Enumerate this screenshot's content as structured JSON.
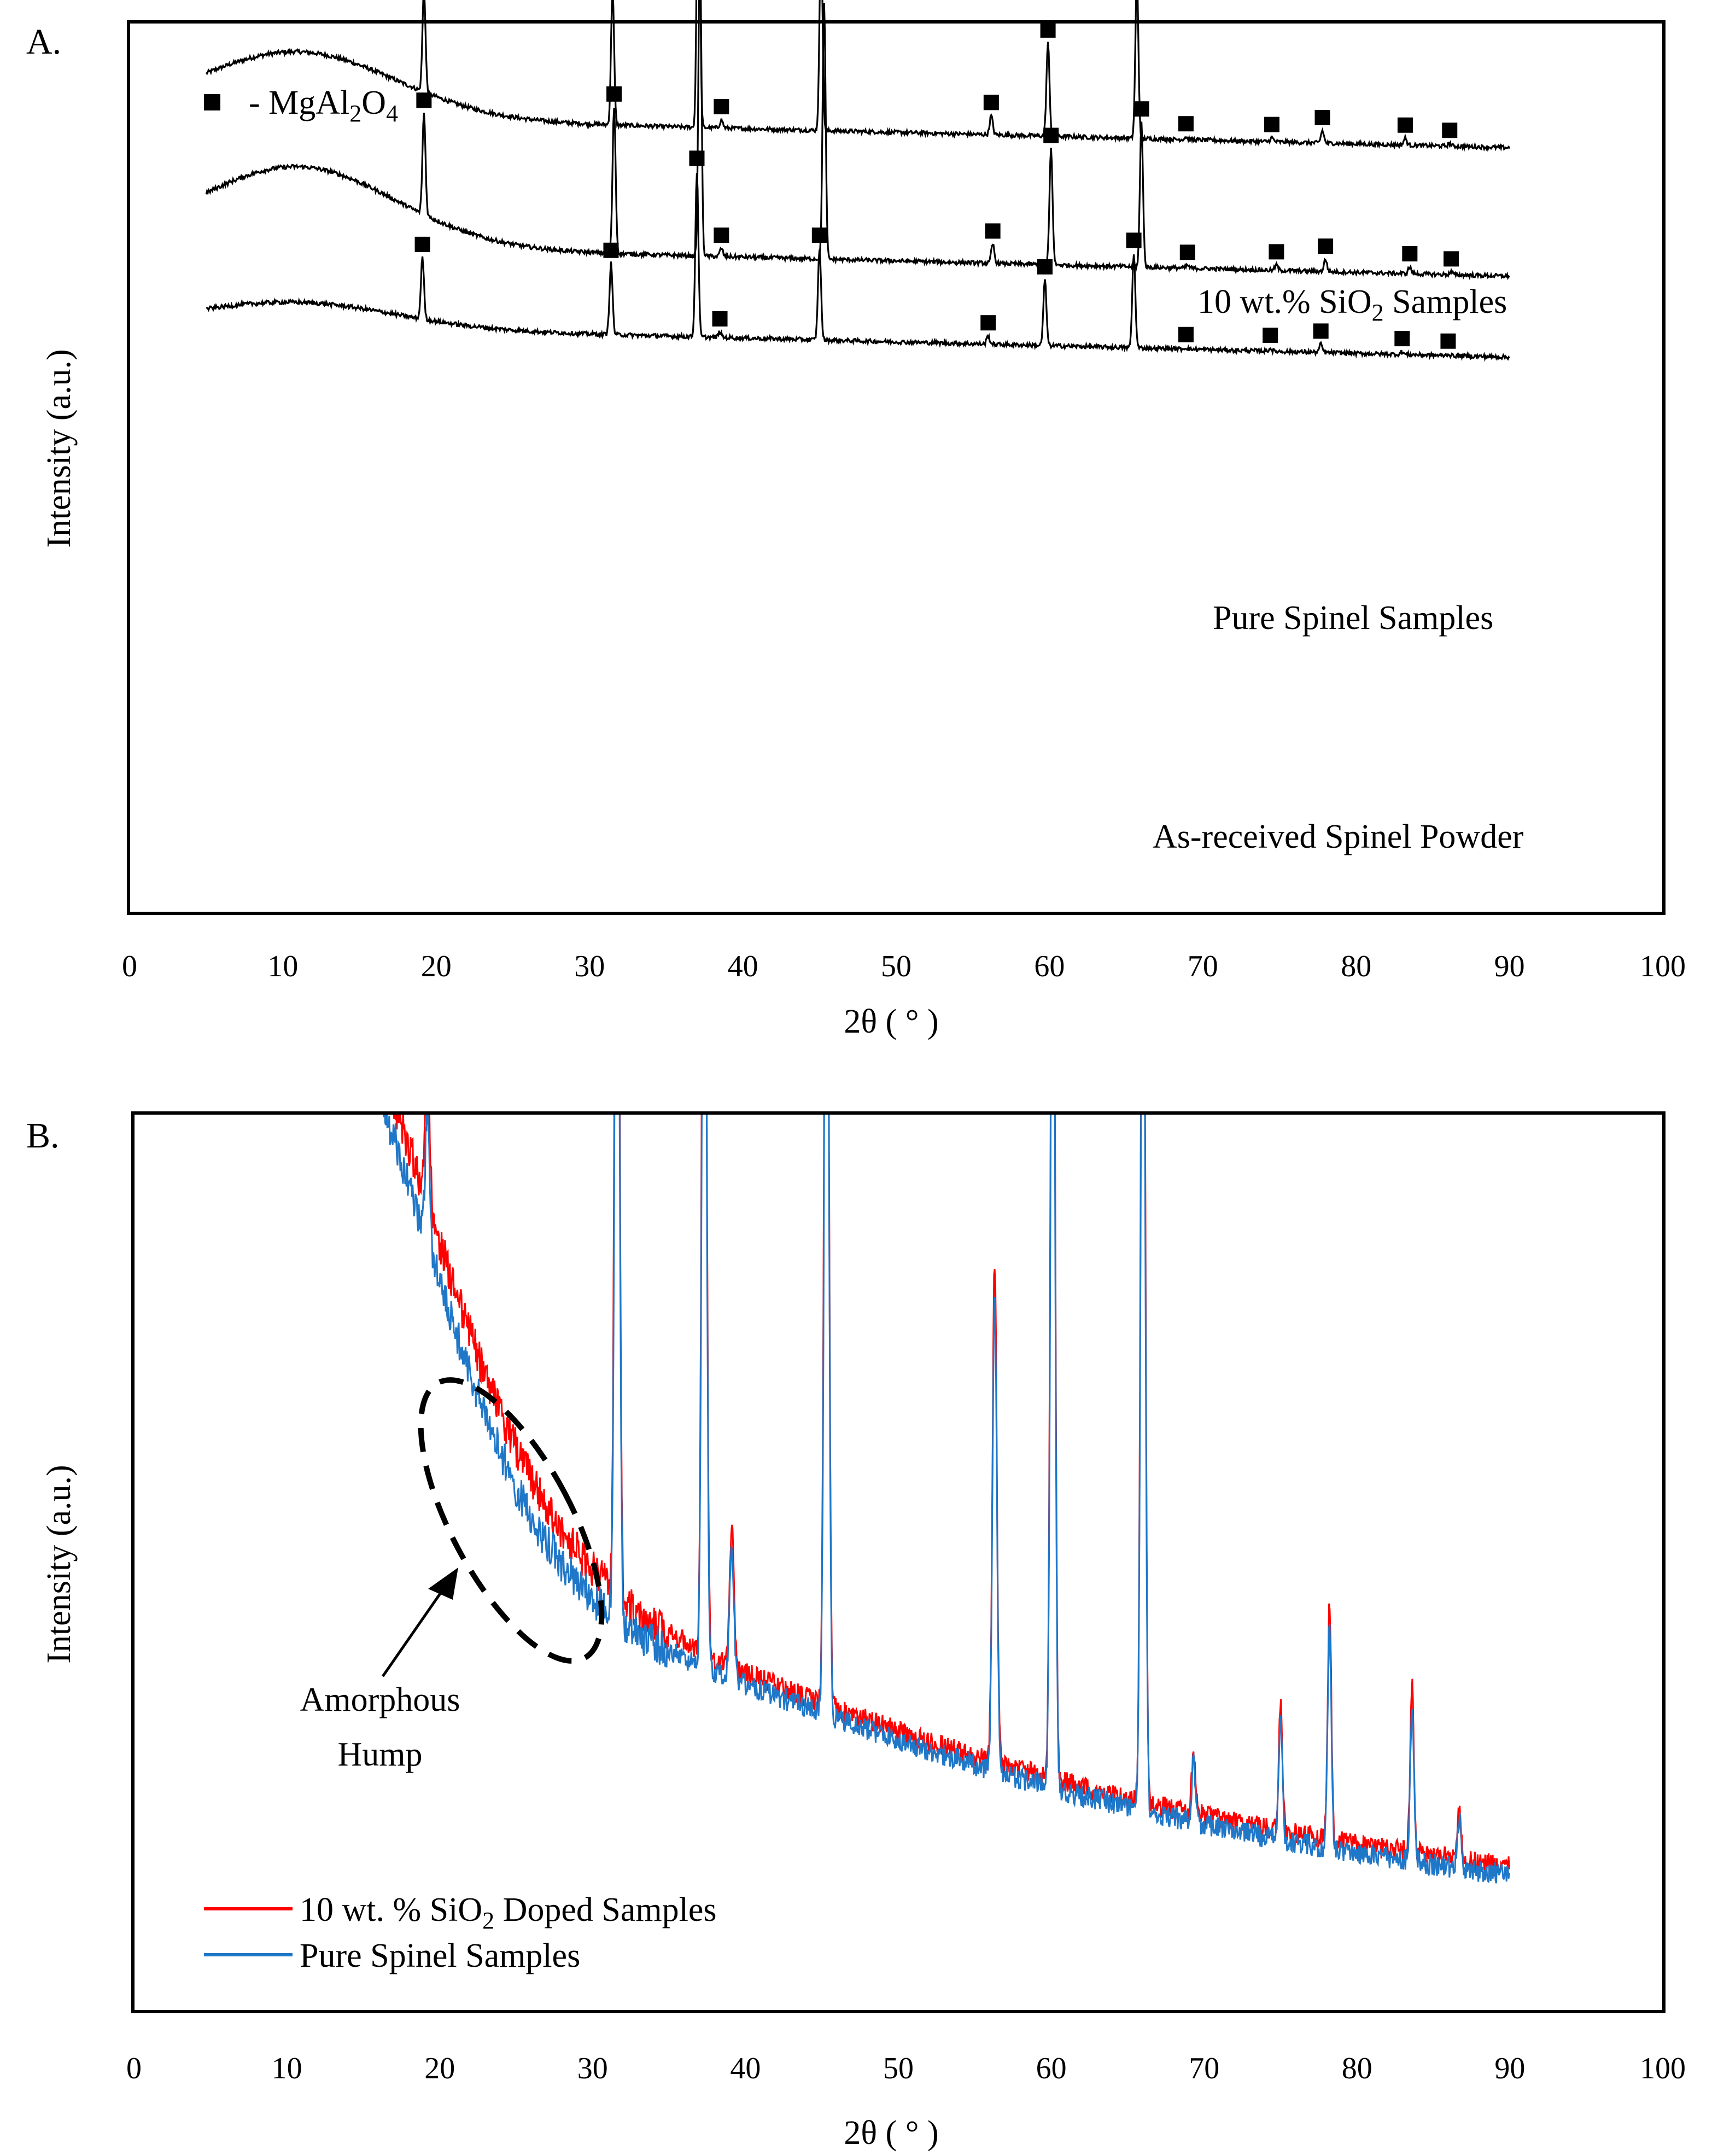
{
  "chart_data": [
    {
      "panel_label": "A.",
      "type": "line",
      "title": "",
      "xlabel": "2θ ( ° )",
      "ylabel": "Intensity (a.u.)",
      "xlim": [
        0,
        100
      ],
      "xticks": [
        0,
        10,
        20,
        30,
        40,
        50,
        60,
        70,
        80,
        90,
        100
      ],
      "marker_legend": {
        "marker": "■",
        "text": "- MgAl",
        "sub1": "2",
        "text2": "O",
        "sub2": "4"
      },
      "series": [
        {
          "name": "10 wt.% SiO2 Samples",
          "label": {
            "text": "10 wt.% SiO",
            "sub": "2",
            "text2": " Samples"
          },
          "color": "#000000",
          "offset": 270,
          "peaks": [
            [
              19.2,
              75
            ],
            [
              31.5,
              99
            ],
            [
              37.1,
              241
            ],
            [
              38.6,
              6
            ],
            [
              45.1,
              142
            ],
            [
              56.2,
              14
            ],
            [
              59.9,
              68
            ],
            [
              65.7,
              117
            ],
            [
              68.9,
              2
            ],
            [
              74.5,
              3
            ],
            [
              77.8,
              9
            ],
            [
              83.2,
              5
            ],
            [
              86.1,
              2
            ]
          ]
        },
        {
          "name": "Pure Spinel Samples",
          "label": {
            "text": "Pure Spinel  Samples"
          },
          "color": "#000000",
          "offset": 505,
          "peaks": [
            [
              19.2,
              74
            ],
            [
              31.6,
              107
            ],
            [
              37.2,
              226
            ],
            [
              38.6,
              6
            ],
            [
              45.3,
              187
            ],
            [
              56.3,
              14
            ],
            [
              60.1,
              85
            ],
            [
              66.0,
              106
            ],
            [
              69.0,
              2
            ],
            [
              74.8,
              4
            ],
            [
              78.0,
              9
            ],
            [
              83.5,
              5
            ],
            [
              86.2,
              2
            ]
          ]
        },
        {
          "name": "As-received  Spinel Powder",
          "label": {
            "text": "As-received  Spinel Powder"
          },
          "color": "#000000",
          "offset": 653,
          "peaks": [
            [
              19.1,
              45
            ],
            [
              31.4,
              52
            ],
            [
              37.0,
              121
            ],
            [
              38.5,
              4
            ],
            [
              45.0,
              67
            ],
            [
              56.0,
              6
            ],
            [
              59.7,
              48
            ],
            [
              65.5,
              69
            ],
            [
              68.9,
              1
            ],
            [
              74.4,
              2
            ],
            [
              77.7,
              6
            ],
            [
              83.0,
              2
            ],
            [
              86.0,
              1
            ]
          ]
        }
      ]
    },
    {
      "panel_label": "B.",
      "type": "line",
      "title": "",
      "xlabel": "2θ ( ° )",
      "ylabel": "Intensity (a.u.)",
      "xlim": [
        0,
        100
      ],
      "xticks": [
        0,
        10,
        20,
        30,
        40,
        50,
        60,
        70,
        80,
        90,
        100
      ],
      "annotation": {
        "line1": "Amorphous",
        "line2": "Hump",
        "x_start": 20,
        "x_end": 31
      },
      "series": [
        {
          "name": "10 wt. % SiO2 Doped Samples",
          "legend": {
            "text": "10 wt. % SiO",
            "sub": "2",
            "text2": " Doped Samples"
          },
          "color": "#ff0000"
        },
        {
          "name": "Pure Spinel Samples",
          "legend": {
            "text": "Pure Spinel Samples"
          },
          "color": "#1f77c8"
        }
      ],
      "peaks_x": [
        19.2,
        31.6,
        37.3,
        39.1,
        45.3,
        56.3,
        60.1,
        66.0,
        69.3,
        75.0,
        78.2,
        83.6,
        86.7
      ]
    }
  ]
}
